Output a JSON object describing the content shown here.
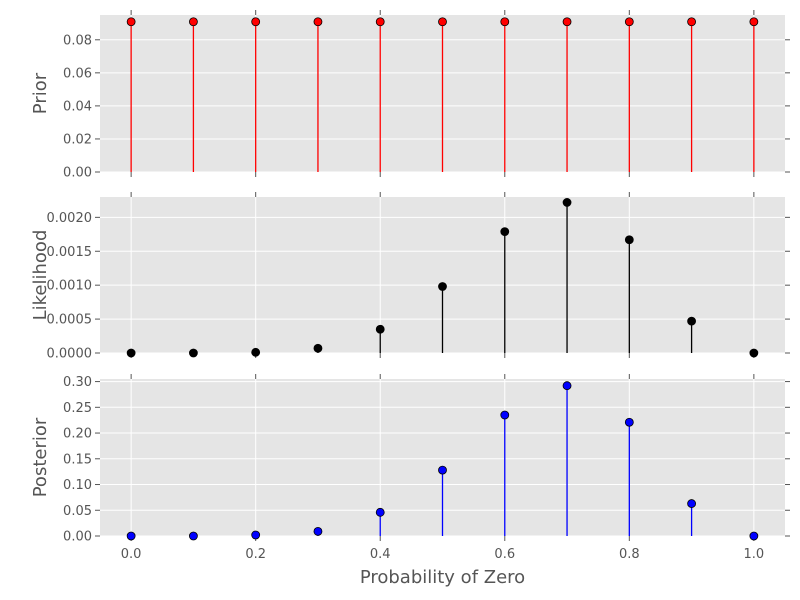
{
  "chart_data": [
    {
      "type": "stem",
      "ylabel": "Prior",
      "color": "#ff0000",
      "x": [
        0.0,
        0.1,
        0.2,
        0.3,
        0.4,
        0.5,
        0.6,
        0.7,
        0.8,
        0.9,
        1.0
      ],
      "values": [
        0.0909,
        0.0909,
        0.0909,
        0.0909,
        0.0909,
        0.0909,
        0.0909,
        0.0909,
        0.0909,
        0.0909,
        0.0909
      ],
      "ylim": [
        0,
        0.095
      ],
      "yticks": [
        "0.00",
        "0.02",
        "0.04",
        "0.06",
        "0.08"
      ],
      "ytick_values": [
        0,
        0.02,
        0.04,
        0.06,
        0.08
      ],
      "xlim": [
        -0.05,
        1.05
      ],
      "show_xticklabels": false
    },
    {
      "type": "stem",
      "ylabel": "Likelihood",
      "color": "#000000",
      "x": [
        0.0,
        0.1,
        0.2,
        0.3,
        0.4,
        0.5,
        0.6,
        0.7,
        0.8,
        0.9,
        1.0
      ],
      "values": [
        0.0,
        0.0,
        1e-05,
        7e-05,
        0.00035,
        0.00098,
        0.00179,
        0.00222,
        0.00167,
        0.00047,
        0.0
      ],
      "ylim": [
        0,
        0.0023
      ],
      "yticks": [
        "0.0000",
        "0.0005",
        "0.0010",
        "0.0015",
        "0.0020"
      ],
      "ytick_values": [
        0,
        0.0005,
        0.001,
        0.0015,
        0.002
      ],
      "xlim": [
        -0.05,
        1.05
      ],
      "show_xticklabels": false
    },
    {
      "type": "stem",
      "ylabel": "Posterior",
      "xlabel": "Probability of Zero",
      "color": "#0000ff",
      "x": [
        0.0,
        0.1,
        0.2,
        0.3,
        0.4,
        0.5,
        0.6,
        0.7,
        0.8,
        0.9,
        1.0
      ],
      "values": [
        0.0,
        0.0,
        0.002,
        0.009,
        0.046,
        0.128,
        0.235,
        0.292,
        0.221,
        0.063,
        0.0
      ],
      "ylim": [
        0,
        0.305
      ],
      "yticks": [
        "0.00",
        "0.05",
        "0.10",
        "0.15",
        "0.20",
        "0.25",
        "0.30"
      ],
      "ytick_values": [
        0,
        0.05,
        0.1,
        0.15,
        0.2,
        0.25,
        0.3
      ],
      "xlim": [
        -0.05,
        1.05
      ],
      "xticks": [
        "0.0",
        "0.2",
        "0.4",
        "0.6",
        "0.8",
        "1.0"
      ],
      "xtick_values": [
        0,
        0.2,
        0.4,
        0.6,
        0.8,
        1.0
      ],
      "show_xticklabels": true
    }
  ],
  "style": {
    "background": "#e5e5e5",
    "grid_color": "#ffffff",
    "tick_color": "#555555",
    "marker_edge": "#000000"
  }
}
